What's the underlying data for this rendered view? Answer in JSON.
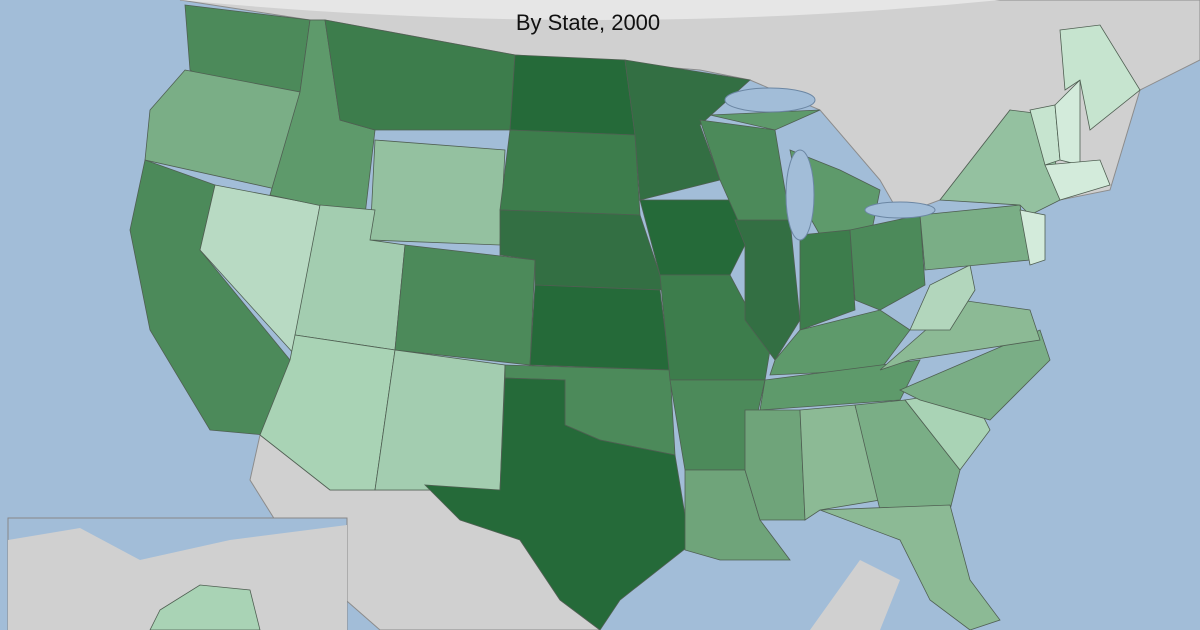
{
  "map": {
    "subtitle": "By State, 2000"
  }
}
